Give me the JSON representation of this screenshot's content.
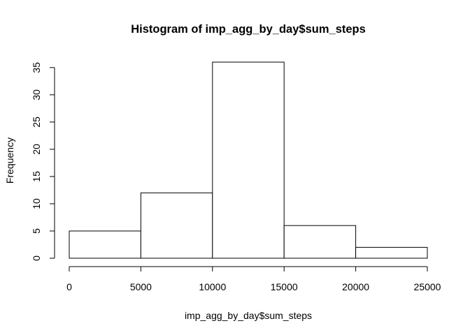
{
  "chart_data": {
    "type": "bar",
    "title": "Histogram of imp_agg_by_day$sum_steps",
    "xlabel": "imp_agg_by_day$sum_steps",
    "ylabel": "Frequency",
    "bins": [
      {
        "from": 0,
        "to": 5000,
        "count": 5
      },
      {
        "from": 5000,
        "to": 10000,
        "count": 12
      },
      {
        "from": 10000,
        "to": 15000,
        "count": 36
      },
      {
        "from": 15000,
        "to": 20000,
        "count": 6
      },
      {
        "from": 20000,
        "to": 25000,
        "count": 2
      }
    ],
    "xlim": [
      0,
      25000
    ],
    "ylim": [
      0,
      36
    ],
    "xticks": [
      "0",
      "5000",
      "10000",
      "15000",
      "20000",
      "25000"
    ],
    "yticks": [
      "0",
      "5",
      "10",
      "15",
      "20",
      "25",
      "30",
      "35"
    ],
    "grid": false,
    "bar_fill": "#ffffff",
    "bar_stroke": "#000000"
  }
}
